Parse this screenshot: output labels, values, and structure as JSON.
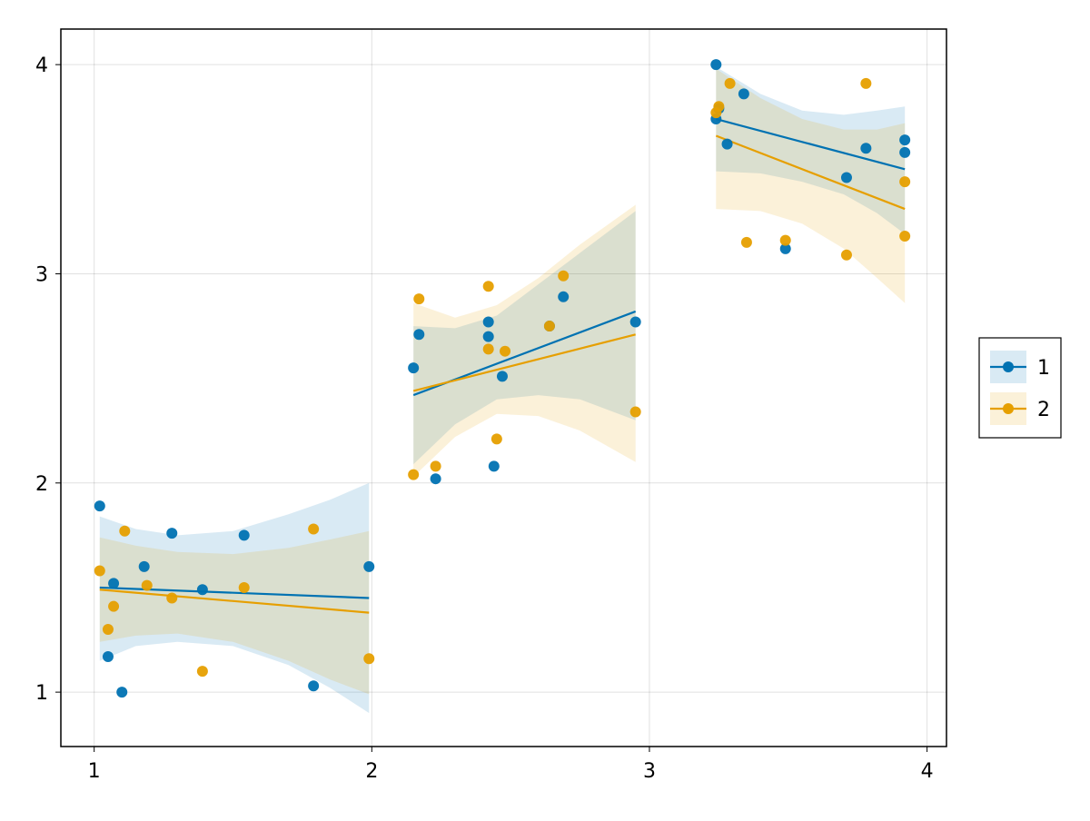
{
  "chart_data": {
    "type": "scatter",
    "title": "",
    "xlabel": "",
    "ylabel": "",
    "xlim": [
      0.88,
      4.07
    ],
    "ylim": [
      0.74,
      4.17
    ],
    "xticks": [
      1,
      2,
      3,
      4
    ],
    "yticks": [
      1,
      2,
      3,
      4
    ],
    "xtick_labels": [
      "1",
      "2",
      "3",
      "4"
    ],
    "ytick_labels": [
      "1",
      "2",
      "3",
      "4"
    ],
    "grid": true,
    "legend_position": "right",
    "series": [
      {
        "name": "1",
        "color": "#0072B2",
        "points": [
          [
            1.02,
            1.89
          ],
          [
            1.05,
            1.17
          ],
          [
            1.07,
            1.52
          ],
          [
            1.1,
            1.0
          ],
          [
            1.18,
            1.6
          ],
          [
            1.28,
            1.76
          ],
          [
            1.39,
            1.49
          ],
          [
            1.54,
            1.75
          ],
          [
            1.79,
            1.03
          ],
          [
            1.99,
            1.6
          ],
          [
            2.15,
            2.55
          ],
          [
            2.17,
            2.71
          ],
          [
            2.23,
            2.02
          ],
          [
            2.42,
            2.77
          ],
          [
            2.42,
            2.7
          ],
          [
            2.44,
            2.08
          ],
          [
            2.47,
            2.51
          ],
          [
            2.64,
            2.75
          ],
          [
            2.69,
            2.89
          ],
          [
            2.95,
            2.77
          ],
          [
            3.24,
            4.0
          ],
          [
            3.24,
            3.74
          ],
          [
            3.25,
            3.79
          ],
          [
            3.28,
            3.62
          ],
          [
            3.34,
            3.86
          ],
          [
            3.49,
            3.12
          ],
          [
            3.71,
            3.46
          ],
          [
            3.78,
            3.6
          ],
          [
            3.92,
            3.64
          ],
          [
            3.92,
            3.58
          ]
        ],
        "fits": [
          {
            "x": [
              1.02,
              1.99
            ],
            "y": [
              1.5,
              1.45
            ],
            "band_x": [
              1.02,
              1.15,
              1.3,
              1.5,
              1.7,
              1.85,
              1.99
            ],
            "band_lower": [
              1.15,
              1.22,
              1.24,
              1.22,
              1.13,
              1.02,
              0.9
            ],
            "band_upper": [
              1.84,
              1.78,
              1.75,
              1.77,
              1.85,
              1.92,
              2.0
            ]
          },
          {
            "x": [
              2.15,
              2.95
            ],
            "y": [
              2.42,
              2.82
            ],
            "band_x": [
              2.15,
              2.3,
              2.45,
              2.6,
              2.75,
              2.95
            ],
            "band_lower": [
              2.09,
              2.28,
              2.4,
              2.42,
              2.4,
              2.3
            ],
            "band_upper": [
              2.75,
              2.74,
              2.8,
              2.95,
              3.1,
              3.3
            ]
          },
          {
            "x": [
              3.24,
              3.92
            ],
            "y": [
              3.74,
              3.5
            ],
            "band_x": [
              3.24,
              3.4,
              3.55,
              3.7,
              3.82,
              3.92
            ],
            "band_lower": [
              3.49,
              3.48,
              3.44,
              3.38,
              3.29,
              3.19
            ],
            "band_upper": [
              3.99,
              3.86,
              3.78,
              3.76,
              3.78,
              3.8
            ]
          }
        ]
      },
      {
        "name": "2",
        "color": "#E69F00",
        "points": [
          [
            1.02,
            1.58
          ],
          [
            1.05,
            1.3
          ],
          [
            1.07,
            1.41
          ],
          [
            1.11,
            1.77
          ],
          [
            1.19,
            1.51
          ],
          [
            1.28,
            1.45
          ],
          [
            1.39,
            1.1
          ],
          [
            1.54,
            1.5
          ],
          [
            1.79,
            1.78
          ],
          [
            1.99,
            1.16
          ],
          [
            2.15,
            2.04
          ],
          [
            2.17,
            2.88
          ],
          [
            2.23,
            2.08
          ],
          [
            2.42,
            2.94
          ],
          [
            2.42,
            2.64
          ],
          [
            2.45,
            2.21
          ],
          [
            2.48,
            2.63
          ],
          [
            2.64,
            2.75
          ],
          [
            2.69,
            2.99
          ],
          [
            2.95,
            2.34
          ],
          [
            3.24,
            3.77
          ],
          [
            3.25,
            3.8
          ],
          [
            3.29,
            3.91
          ],
          [
            3.35,
            3.15
          ],
          [
            3.49,
            3.16
          ],
          [
            3.71,
            3.09
          ],
          [
            3.78,
            3.91
          ],
          [
            3.92,
            3.44
          ],
          [
            3.92,
            3.18
          ]
        ],
        "fits": [
          {
            "x": [
              1.02,
              1.99
            ],
            "y": [
              1.49,
              1.38
            ],
            "band_x": [
              1.02,
              1.15,
              1.3,
              1.5,
              1.7,
              1.85,
              1.99
            ],
            "band_lower": [
              1.24,
              1.27,
              1.28,
              1.24,
              1.15,
              1.06,
              0.99
            ],
            "band_upper": [
              1.74,
              1.7,
              1.67,
              1.66,
              1.69,
              1.73,
              1.77
            ]
          },
          {
            "x": [
              2.15,
              2.95
            ],
            "y": [
              2.44,
              2.71
            ],
            "band_x": [
              2.15,
              2.3,
              2.45,
              2.6,
              2.75,
              2.95
            ],
            "band_lower": [
              2.03,
              2.22,
              2.33,
              2.32,
              2.25,
              2.1
            ],
            "band_upper": [
              2.86,
              2.79,
              2.85,
              2.98,
              3.14,
              3.33
            ]
          },
          {
            "x": [
              3.24,
              3.92
            ],
            "y": [
              3.66,
              3.31
            ],
            "band_x": [
              3.24,
              3.4,
              3.55,
              3.7,
              3.82,
              3.92
            ],
            "band_lower": [
              3.31,
              3.3,
              3.24,
              3.12,
              2.98,
              2.86
            ],
            "band_upper": [
              3.98,
              3.84,
              3.74,
              3.69,
              3.69,
              3.72
            ]
          }
        ]
      }
    ]
  }
}
